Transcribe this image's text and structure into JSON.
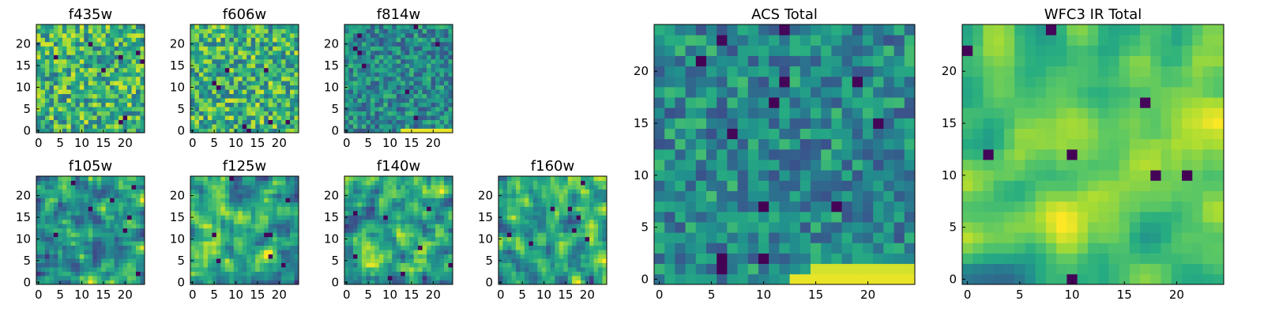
{
  "chart_data": [
    {
      "type": "heatmap",
      "title": "f435w",
      "seed": 11,
      "style": "noise",
      "xticks": [
        "0",
        "5",
        "10",
        "15",
        "20"
      ],
      "yticks": [
        "0",
        "5",
        "10",
        "15",
        "20"
      ],
      "xlim": [
        0,
        25
      ],
      "ylim": [
        0,
        25
      ]
    },
    {
      "type": "heatmap",
      "title": "f606w",
      "seed": 23,
      "style": "noise",
      "xticks": [
        "0",
        "5",
        "10",
        "15",
        "20"
      ],
      "yticks": [
        "0",
        "5",
        "10",
        "15",
        "20"
      ],
      "xlim": [
        0,
        25
      ],
      "ylim": [
        0,
        25
      ]
    },
    {
      "type": "heatmap",
      "title": "f814w",
      "seed": 37,
      "style": "dark",
      "xticks": [
        "0",
        "5",
        "10",
        "15",
        "20"
      ],
      "yticks": [
        "0",
        "5",
        "10",
        "15",
        "20"
      ],
      "xlim": [
        0,
        25
      ],
      "ylim": [
        0,
        25
      ]
    },
    {
      "type": "heatmap",
      "title": "f105w",
      "seed": 41,
      "style": "smooth",
      "xticks": [
        "0",
        "5",
        "10",
        "15",
        "20"
      ],
      "yticks": [
        "0",
        "5",
        "10",
        "15",
        "20"
      ],
      "xlim": [
        0,
        25
      ],
      "ylim": [
        0,
        25
      ]
    },
    {
      "type": "heatmap",
      "title": "f125w",
      "seed": 53,
      "style": "smooth",
      "xticks": [
        "0",
        "5",
        "10",
        "15",
        "20"
      ],
      "yticks": [
        "0",
        "5",
        "10",
        "15",
        "20"
      ],
      "xlim": [
        0,
        25
      ],
      "ylim": [
        0,
        25
      ]
    },
    {
      "type": "heatmap",
      "title": "f140w",
      "seed": 67,
      "style": "smooth",
      "xticks": [
        "0",
        "5",
        "10",
        "15",
        "20"
      ],
      "yticks": [
        "0",
        "5",
        "10",
        "15",
        "20"
      ],
      "xlim": [
        0,
        25
      ],
      "ylim": [
        0,
        25
      ]
    },
    {
      "type": "heatmap",
      "title": "f160w",
      "seed": 79,
      "style": "smooth",
      "xticks": [
        "0",
        "5",
        "10",
        "15",
        "20"
      ],
      "yticks": [
        "0",
        "5",
        "10",
        "15",
        "20"
      ],
      "xlim": [
        0,
        25
      ],
      "ylim": [
        0,
        25
      ]
    },
    {
      "type": "heatmap",
      "title": "ACS Total",
      "seed": 83,
      "style": "acs",
      "xticks": [
        "0",
        "5",
        "10",
        "15",
        "20"
      ],
      "yticks": [
        "0",
        "5",
        "10",
        "15",
        "20"
      ],
      "xlim": [
        0,
        25
      ],
      "ylim": [
        0,
        25
      ]
    },
    {
      "type": "heatmap",
      "title": "WFC3 IR Total",
      "seed": 97,
      "style": "ir",
      "xticks": [
        "0",
        "5",
        "10",
        "15",
        "20"
      ],
      "yticks": [
        "0",
        "5",
        "10",
        "15",
        "20"
      ],
      "xlim": [
        0,
        25
      ],
      "ylim": [
        0,
        25
      ]
    }
  ],
  "colormap": "viridis",
  "colors": {
    "low": "#440154",
    "mid": "#21918c",
    "high": "#fde725"
  }
}
